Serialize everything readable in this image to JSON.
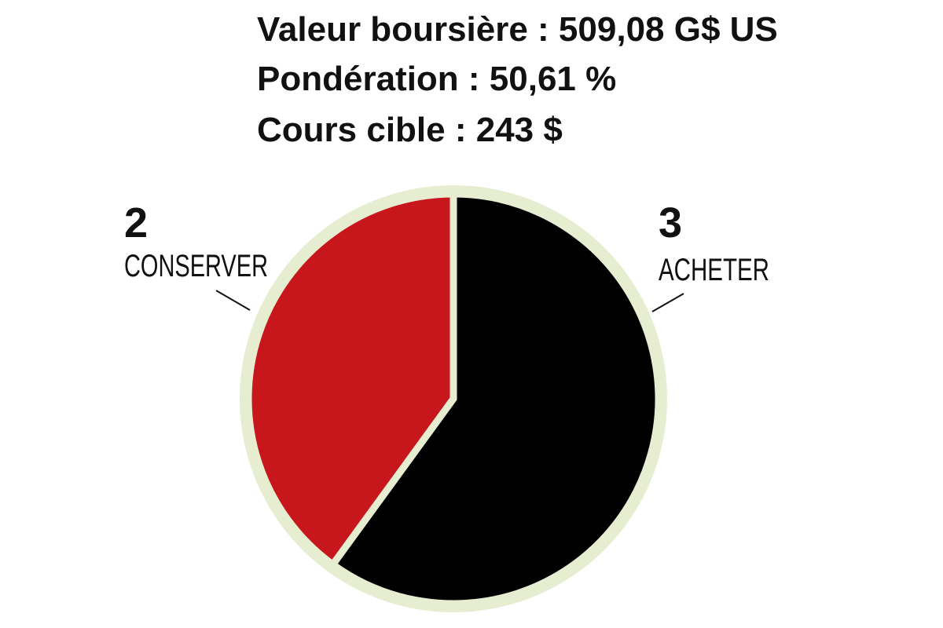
{
  "chart_data": {
    "type": "pie",
    "annotations": [
      "Valeur boursière : 509,08 G$ US",
      "Pondération : 50,61 %",
      "Cours cible : 243 $"
    ],
    "categories": [
      "CONSERVER",
      "ACHETER"
    ],
    "values": [
      2,
      3
    ],
    "colors": [
      "#c8161d",
      "#000000"
    ]
  }
}
